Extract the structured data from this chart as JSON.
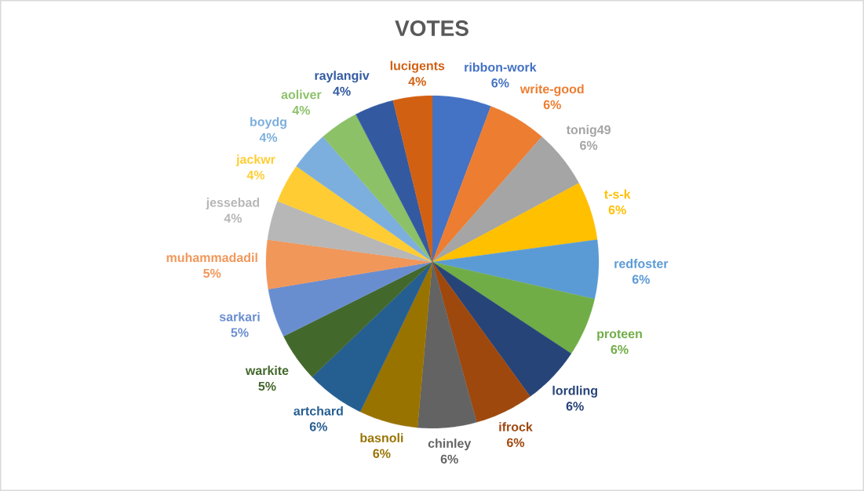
{
  "chart_data": {
    "type": "pie",
    "title": "VOTES",
    "categories": [
      "ribbon-work",
      "write-good",
      "tonig49",
      "t-s-k",
      "redfoster",
      "proteen",
      "lordling",
      "ifrock",
      "chinley",
      "basnoli",
      "artchard",
      "warkite",
      "sarkari",
      "muhammadadil",
      "jessebad",
      "jackwr",
      "boydg",
      "aoliver",
      "raylangiv",
      "lucigents"
    ],
    "values": [
      6,
      6,
      6,
      6,
      6,
      6,
      6,
      6,
      6,
      6,
      6,
      5,
      5,
      5,
      4,
      4,
      4,
      4,
      4,
      4
    ],
    "value_labels": [
      "6%",
      "6%",
      "6%",
      "6%",
      "6%",
      "6%",
      "6%",
      "6%",
      "6%",
      "6%",
      "6%",
      "5%",
      "5%",
      "5%",
      "4%",
      "4%",
      "4%",
      "4%",
      "4%",
      "4%"
    ],
    "colors": [
      "#4472c4",
      "#ed7d31",
      "#a5a5a5",
      "#ffc000",
      "#5b9bd5",
      "#70ad47",
      "#264478",
      "#9e480e",
      "#636363",
      "#997300",
      "#255e91",
      "#43682b",
      "#698ed0",
      "#f1975a",
      "#b7b7b7",
      "#ffcd33",
      "#7cafdd",
      "#8cc168",
      "#335aa1",
      "#d26012"
    ]
  }
}
